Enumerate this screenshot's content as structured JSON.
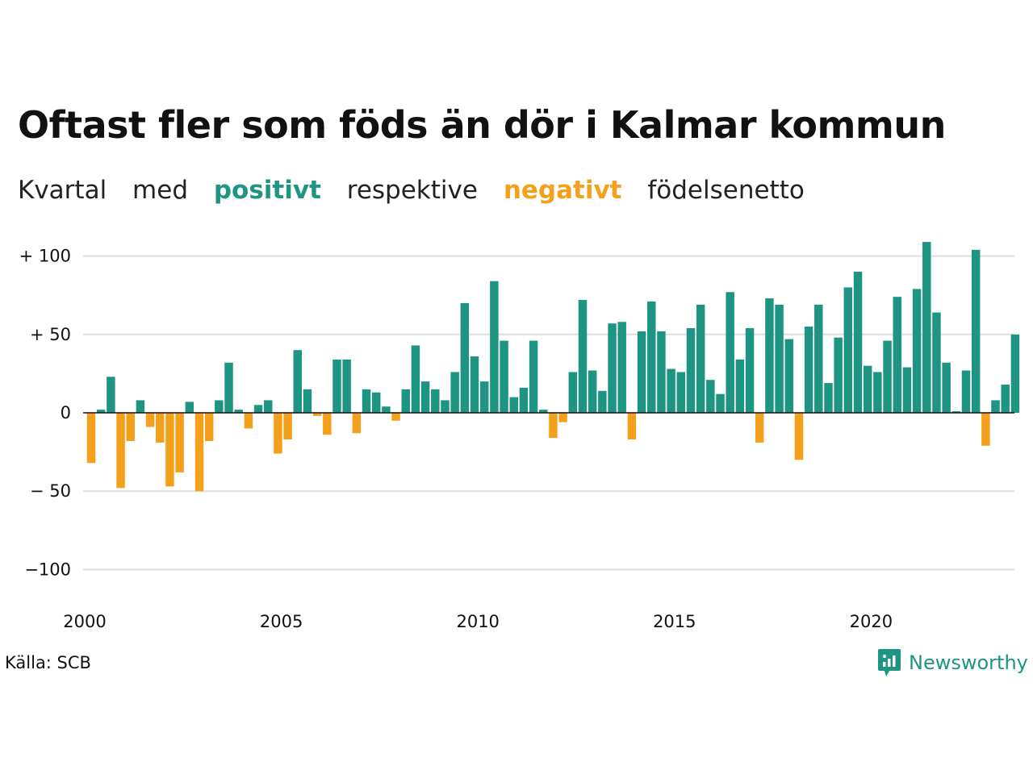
{
  "title": "Oftast fler som föds än dör i Kalmar kommun",
  "subtitle": {
    "part1": "Kvartal",
    "part2": "med",
    "positive": "positivt",
    "part3": "respektive",
    "negative": "negativt",
    "part4": "födelsenetto"
  },
  "source": "Källa: SCB",
  "brand": "Newsworthy",
  "colors": {
    "positive": "#1e9582",
    "negative": "#f5a01a",
    "grid": "#dddddd",
    "axis": "#111111"
  },
  "chart_data": {
    "type": "bar",
    "x_start": 2000,
    "periods_per_year": 4,
    "x_ticks": [
      "2000",
      "2005",
      "2010",
      "2015",
      "2020"
    ],
    "y_ticks": [
      {
        "value": 100,
        "label": "+ 100"
      },
      {
        "value": 50,
        "label": "+  50"
      },
      {
        "value": 0,
        "label": "0"
      },
      {
        "value": -50,
        "label": "− 50"
      },
      {
        "value": -100,
        "label": "−100"
      }
    ],
    "ylim": [
      -115,
      112
    ],
    "grid": true,
    "values": [
      -32,
      2,
      23,
      -48,
      -18,
      8,
      -9,
      -19,
      -47,
      -38,
      7,
      -50,
      -18,
      8,
      32,
      2,
      -10,
      5,
      8,
      -26,
      -17,
      40,
      15,
      -2,
      -14,
      34,
      34,
      -13,
      15,
      13,
      4,
      -5,
      15,
      43,
      20,
      15,
      8,
      26,
      70,
      36,
      20,
      84,
      46,
      10,
      16,
      46,
      2,
      -16,
      -6,
      26,
      72,
      27,
      14,
      57,
      58,
      -17,
      52,
      71,
      52,
      28,
      26,
      54,
      69,
      21,
      12,
      77,
      34,
      54,
      -19,
      73,
      69,
      47,
      -30,
      55,
      69,
      19,
      48,
      80,
      90,
      30,
      26,
      46,
      74,
      29,
      79,
      109,
      64,
      32,
      1,
      27,
      104,
      -21,
      8,
      18,
      50
    ]
  }
}
